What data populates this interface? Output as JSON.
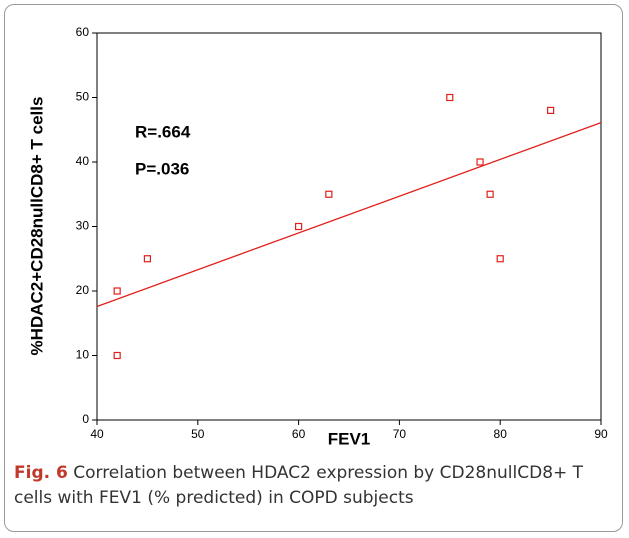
{
  "chart_data": {
    "type": "scatter",
    "xlabel": "FEV1",
    "ylabel": "%HDAC2+CD28nullCD8+ T cells",
    "annotations": [
      "R=.664",
      "P=.036"
    ],
    "x": [
      42,
      42,
      45,
      60,
      63,
      75,
      78,
      79,
      80,
      85
    ],
    "values": [
      10,
      20,
      25,
      30,
      35,
      50,
      40,
      35,
      25,
      48
    ],
    "color": "#e0201a",
    "fit_line": {
      "x": [
        40,
        90
      ],
      "y": [
        17.6,
        46.1
      ],
      "color": "#e0201a"
    },
    "xlim": [
      40,
      90
    ],
    "xticks": [
      40,
      50,
      60,
      70,
      80,
      90
    ],
    "ylim": [
      0,
      60
    ],
    "yticks": [
      0,
      10,
      20,
      30,
      40,
      50,
      60
    ],
    "grid": false
  },
  "caption": {
    "label": "Fig. 6",
    "text": "Correlation between HDAC2 expression by CD28nullCD8+ T cells with FEV1 (% predicted) in COPD subjects"
  }
}
